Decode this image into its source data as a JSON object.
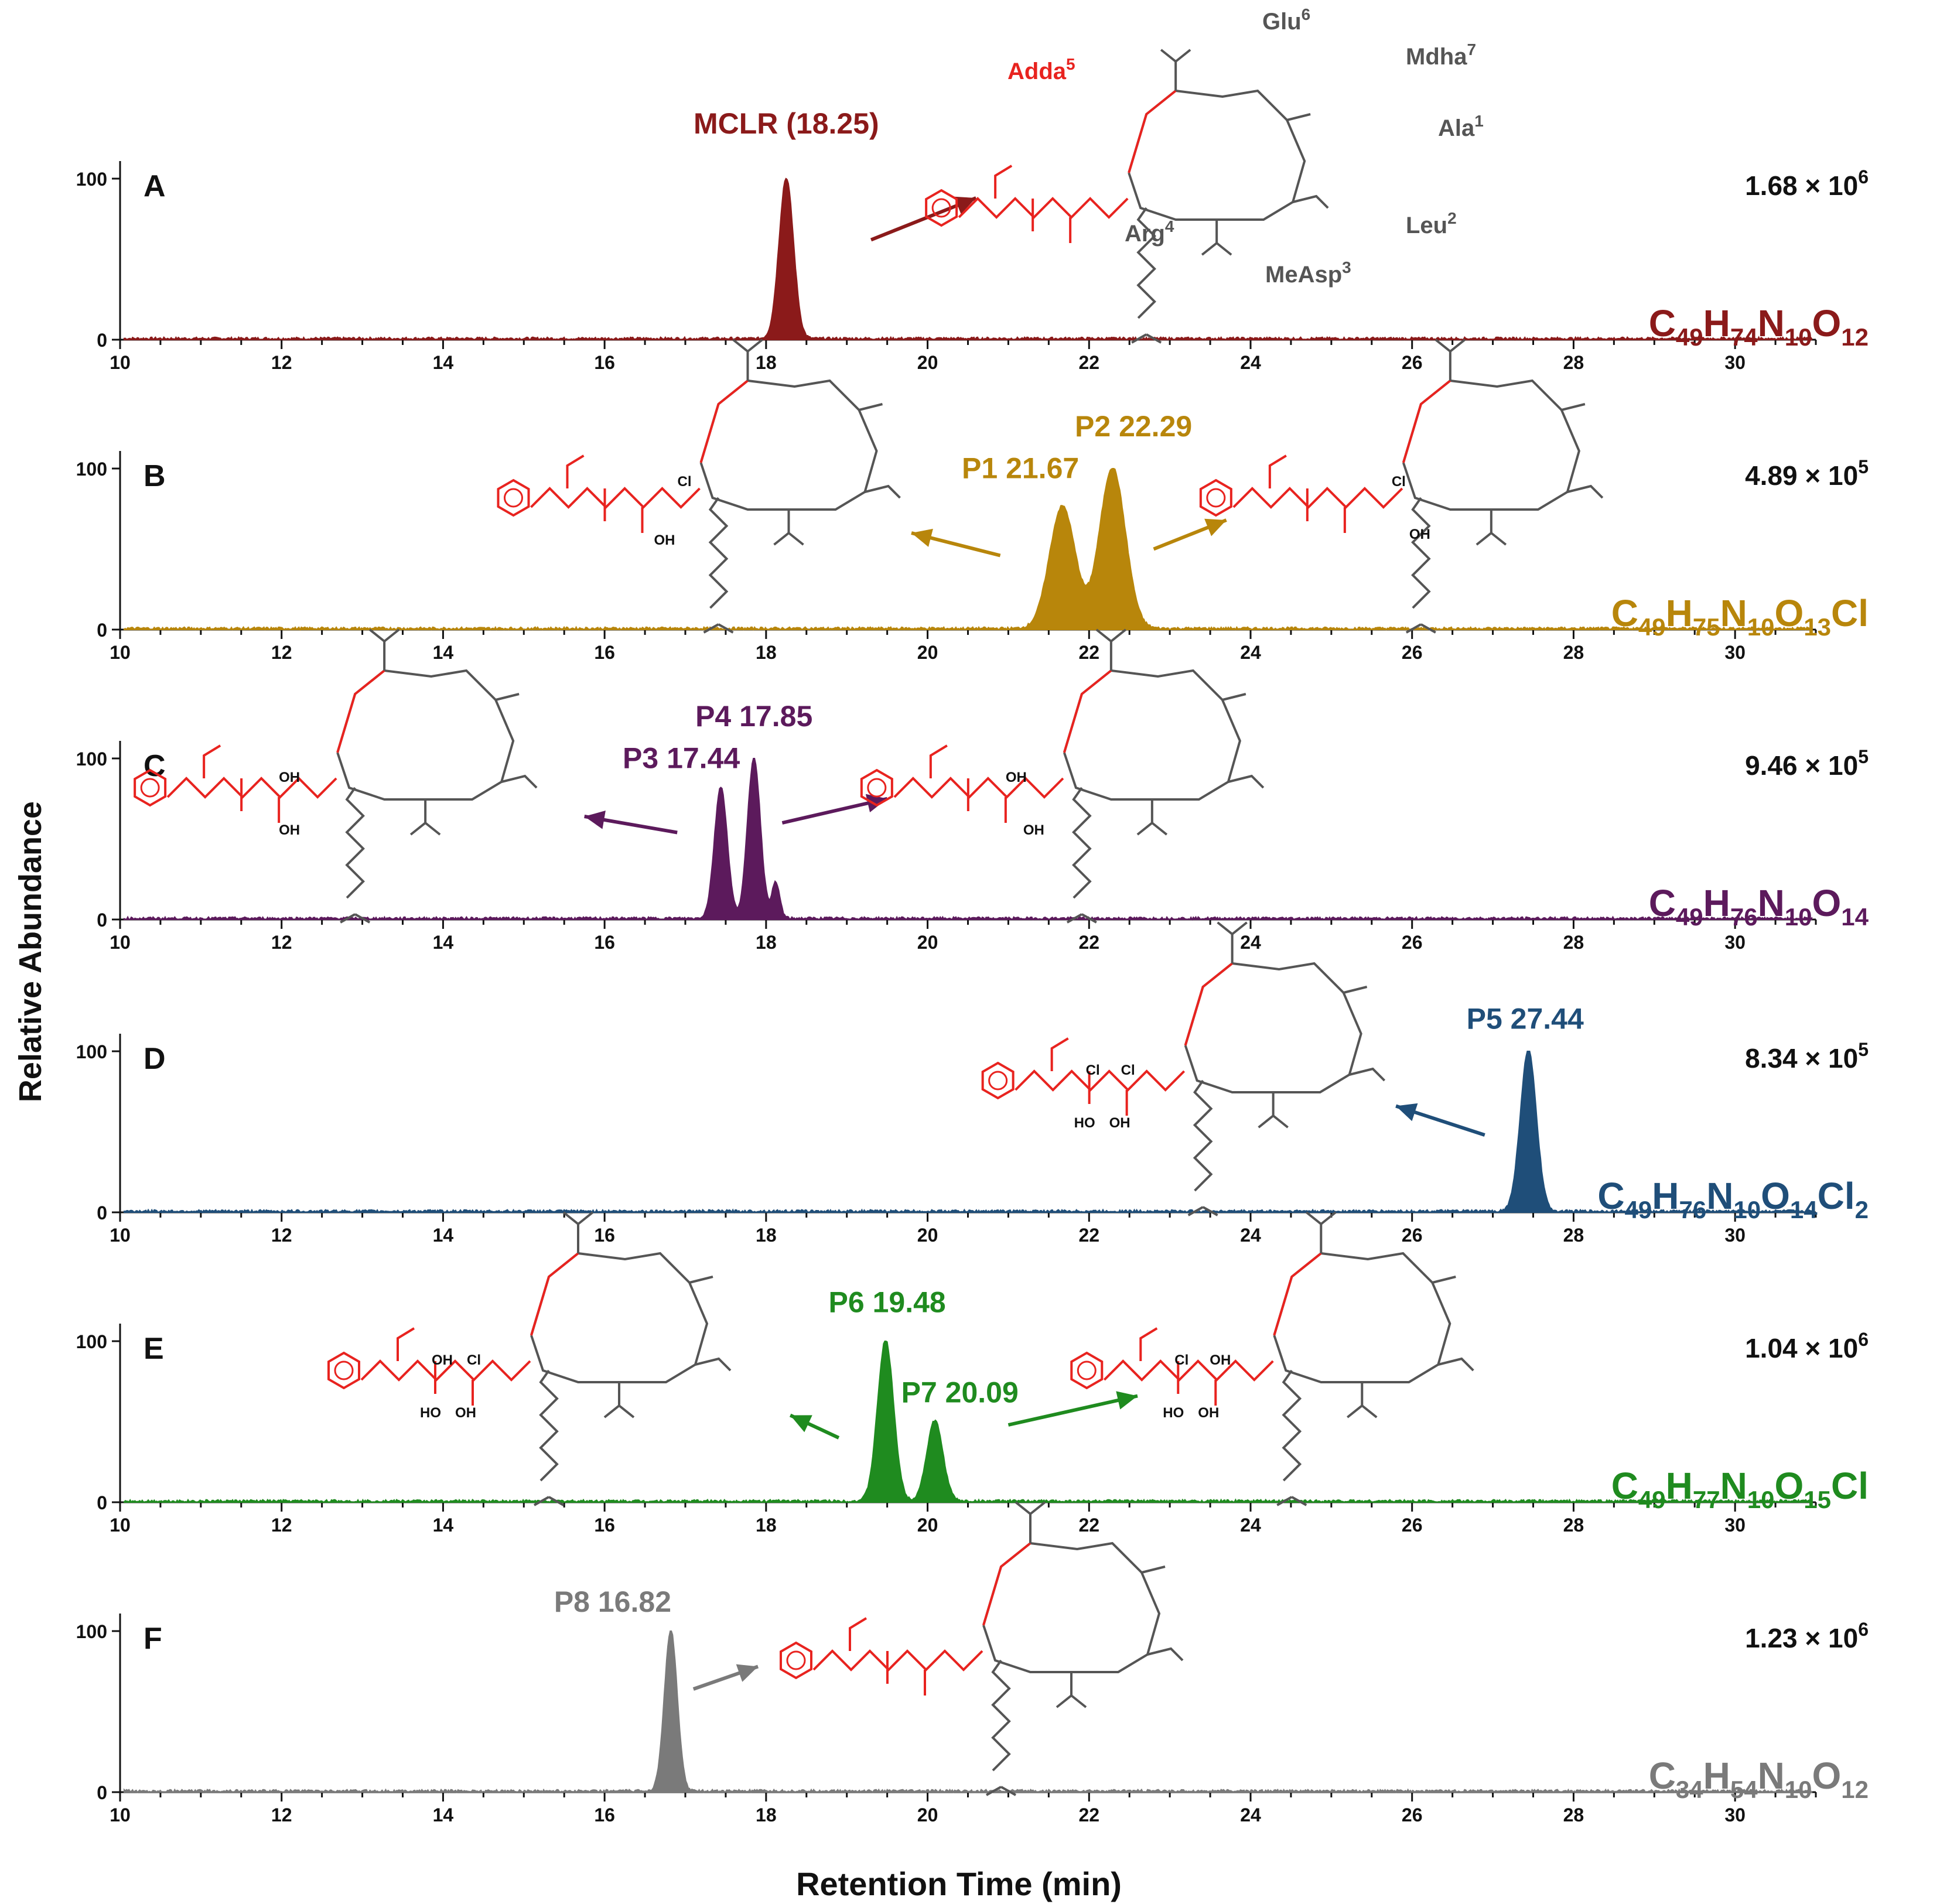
{
  "figure": {
    "ylabel": "Relative Abundance",
    "xlabel": "Retention Time (min)"
  },
  "chart_data": [
    {
      "type": "line",
      "panel": "A",
      "color": "#8b1a1a",
      "formula": {
        "parts": [
          [
            "C",
            ""
          ],
          [
            "49",
            "sub"
          ],
          [
            "H",
            ""
          ],
          [
            "74",
            "sub"
          ],
          [
            "N",
            ""
          ],
          [
            "10",
            "sub"
          ],
          [
            "O",
            ""
          ],
          [
            "12",
            "sub"
          ]
        ]
      },
      "intensity": {
        "mant": "1.68 × 10",
        "exp": "6"
      },
      "xlim": [
        10,
        31
      ],
      "ylim": [
        0,
        100
      ],
      "yticks": [
        "0",
        "100"
      ],
      "xticks": [
        "10",
        "12",
        "14",
        "16",
        "18",
        "20",
        "22",
        "24",
        "26",
        "28",
        "30"
      ],
      "peaks": [
        {
          "rt": 18.25,
          "height": 100,
          "width": 0.09
        }
      ],
      "labels": [
        {
          "text": "MCLR (18.25)",
          "rt": 18.25,
          "level": 128
        }
      ],
      "arrows": [
        {
          "x1": 19.3,
          "y1": 62,
          "x2": 20.6,
          "y2": 88
        }
      ],
      "structures": [
        {
          "at": 23.0,
          "type": "MCLR",
          "variant": "parent"
        }
      ],
      "residues": {
        "adda": "Adda",
        "adda_sup": "5",
        "glu": "Glu",
        "glu_sup": "6",
        "mdha": "Mdha",
        "mdha_sup": "7",
        "ala": "Ala",
        "ala_sup": "1",
        "leu": "Leu",
        "leu_sup": "2",
        "measp": "MeAsp",
        "measp_sup": "3",
        "arg": "Arg",
        "arg_sup": "4"
      }
    },
    {
      "type": "line",
      "panel": "B",
      "color": "#b8860b",
      "formula": {
        "parts": [
          [
            "C",
            ""
          ],
          [
            "49",
            "sub"
          ],
          [
            "H",
            ""
          ],
          [
            "75",
            "sub"
          ],
          [
            "N",
            ""
          ],
          [
            "10",
            "sub"
          ],
          [
            "O",
            ""
          ],
          [
            "13",
            "sub"
          ],
          [
            "Cl",
            ""
          ]
        ]
      },
      "intensity": {
        "mant": "4.89 × 10",
        "exp": "5"
      },
      "xlim": [
        10,
        31
      ],
      "ylim": [
        0,
        100
      ],
      "yticks": [
        "0",
        "100"
      ],
      "xticks": [
        "10",
        "12",
        "14",
        "16",
        "18",
        "20",
        "22",
        "24",
        "26",
        "28",
        "30"
      ],
      "peaks": [
        {
          "rt": 21.67,
          "height": 76,
          "width": 0.16
        },
        {
          "rt": 22.29,
          "height": 100,
          "width": 0.16
        }
      ],
      "labels": [
        {
          "text": "P1 21.67",
          "rt": 21.15,
          "level": 94
        },
        {
          "text": "P2 22.29",
          "rt": 22.55,
          "level": 120
        }
      ],
      "arrows": [
        {
          "x1": 20.9,
          "y1": 46,
          "x2": 19.8,
          "y2": 60
        },
        {
          "x1": 22.8,
          "y1": 50,
          "x2": 23.7,
          "y2": 68
        }
      ],
      "structures": [
        {
          "at": 17.7,
          "type": "MCLR",
          "variant": "B1"
        },
        {
          "at": 26.4,
          "type": "MCLR",
          "variant": "B2"
        }
      ]
    },
    {
      "type": "line",
      "panel": "C",
      "color": "#5c1a5c",
      "formula": {
        "parts": [
          [
            "C",
            ""
          ],
          [
            "49",
            "sub"
          ],
          [
            "H",
            ""
          ],
          [
            "76",
            "sub"
          ],
          [
            "N",
            ""
          ],
          [
            "10",
            "sub"
          ],
          [
            "O",
            ""
          ],
          [
            "14",
            "sub"
          ]
        ]
      },
      "intensity": {
        "mant": "9.46 × 10",
        "exp": "5"
      },
      "xlim": [
        10,
        31
      ],
      "ylim": [
        0,
        100
      ],
      "yticks": [
        "0",
        "100"
      ],
      "xticks": [
        "10",
        "12",
        "14",
        "16",
        "18",
        "20",
        "22",
        "24",
        "26",
        "28",
        "30"
      ],
      "peaks": [
        {
          "rt": 17.44,
          "height": 82,
          "width": 0.08
        },
        {
          "rt": 17.85,
          "height": 100,
          "width": 0.08
        },
        {
          "rt": 18.12,
          "height": 22,
          "width": 0.05
        }
      ],
      "labels": [
        {
          "text": "P3 17.44",
          "rt": 16.95,
          "level": 94
        },
        {
          "text": "P4 17.85",
          "rt": 17.85,
          "level": 120
        }
      ],
      "arrows": [
        {
          "x1": 16.9,
          "y1": 54,
          "x2": 15.75,
          "y2": 64
        },
        {
          "x1": 18.2,
          "y1": 60,
          "x2": 19.5,
          "y2": 75
        }
      ],
      "structures": [
        {
          "at": 13.2,
          "type": "MCLR",
          "variant": "C1"
        },
        {
          "at": 22.2,
          "type": "MCLR",
          "variant": "C2"
        }
      ]
    },
    {
      "type": "line",
      "panel": "D",
      "color": "#1f4e79",
      "formula": {
        "parts": [
          [
            "C",
            ""
          ],
          [
            "49",
            "sub"
          ],
          [
            "H",
            ""
          ],
          [
            "76",
            "sub"
          ],
          [
            "N",
            ""
          ],
          [
            "10",
            "sub"
          ],
          [
            "O",
            ""
          ],
          [
            "14",
            "sub"
          ],
          [
            "Cl",
            ""
          ],
          [
            "2",
            "sub"
          ]
        ]
      },
      "intensity": {
        "mant": "8.34 × 10",
        "exp": "5"
      },
      "xlim": [
        10,
        31
      ],
      "ylim": [
        0,
        100
      ],
      "yticks": [
        "0",
        "100"
      ],
      "xticks": [
        "10",
        "12",
        "14",
        "16",
        "18",
        "20",
        "22",
        "24",
        "26",
        "28",
        "30"
      ],
      "peaks": [
        {
          "rt": 27.44,
          "height": 100,
          "width": 0.1
        }
      ],
      "labels": [
        {
          "text": "P5 27.44",
          "rt": 27.4,
          "level": 114
        }
      ],
      "arrows": [
        {
          "x1": 26.9,
          "y1": 48,
          "x2": 25.8,
          "y2": 66
        }
      ],
      "structures": [
        {
          "at": 23.7,
          "type": "MCLR",
          "variant": "D"
        }
      ]
    },
    {
      "type": "line",
      "panel": "E",
      "color": "#1f8b1f",
      "formula": {
        "parts": [
          [
            "C",
            ""
          ],
          [
            "49",
            "sub"
          ],
          [
            "H",
            ""
          ],
          [
            "77",
            "sub"
          ],
          [
            "N",
            ""
          ],
          [
            "10",
            "sub"
          ],
          [
            "O",
            ""
          ],
          [
            "15",
            "sub"
          ],
          [
            "Cl",
            ""
          ]
        ]
      },
      "intensity": {
        "mant": "1.04 × 10",
        "exp": "6"
      },
      "xlim": [
        10,
        31
      ],
      "ylim": [
        0,
        100
      ],
      "yticks": [
        "0",
        "100"
      ],
      "xticks": [
        "10",
        "12",
        "14",
        "16",
        "18",
        "20",
        "22",
        "24",
        "26",
        "28",
        "30"
      ],
      "peaks": [
        {
          "rt": 19.48,
          "height": 100,
          "width": 0.1
        },
        {
          "rt": 20.09,
          "height": 50,
          "width": 0.1
        }
      ],
      "labels": [
        {
          "text": "P6 19.48",
          "rt": 19.5,
          "level": 118
        },
        {
          "text": "P7 20.09",
          "rt": 20.4,
          "level": 62
        }
      ],
      "arrows": [
        {
          "x1": 18.9,
          "y1": 40,
          "x2": 18.3,
          "y2": 54
        },
        {
          "x1": 21.0,
          "y1": 48,
          "x2": 22.6,
          "y2": 66
        }
      ],
      "structures": [
        {
          "at": 15.6,
          "type": "MCLR",
          "variant": "E1"
        },
        {
          "at": 24.8,
          "type": "MCLR",
          "variant": "E2"
        }
      ]
    },
    {
      "type": "line",
      "panel": "F",
      "color": "#7a7a7a",
      "formula": {
        "parts": [
          [
            "C",
            ""
          ],
          [
            "34",
            "sub"
          ],
          [
            "H",
            ""
          ],
          [
            "54",
            "sub"
          ],
          [
            "N",
            ""
          ],
          [
            "10",
            "sub"
          ],
          [
            "O",
            ""
          ],
          [
            "12",
            "sub"
          ]
        ]
      },
      "intensity": {
        "mant": "1.23 × 10",
        "exp": "6"
      },
      "xlim": [
        10,
        31
      ],
      "ylim": [
        0,
        100
      ],
      "yticks": [
        "0",
        "100"
      ],
      "xticks": [
        "10",
        "12",
        "14",
        "16",
        "18",
        "20",
        "22",
        "24",
        "26",
        "28",
        "30"
      ],
      "peaks": [
        {
          "rt": 16.82,
          "height": 100,
          "width": 0.08
        }
      ],
      "labels": [
        {
          "text": "P8 16.82",
          "rt": 16.1,
          "level": 112
        }
      ],
      "arrows": [
        {
          "x1": 17.1,
          "y1": 64,
          "x2": 17.9,
          "y2": 78
        }
      ],
      "structures": [
        {
          "at": 21.2,
          "type": "MCLR",
          "variant": "F"
        }
      ]
    }
  ]
}
